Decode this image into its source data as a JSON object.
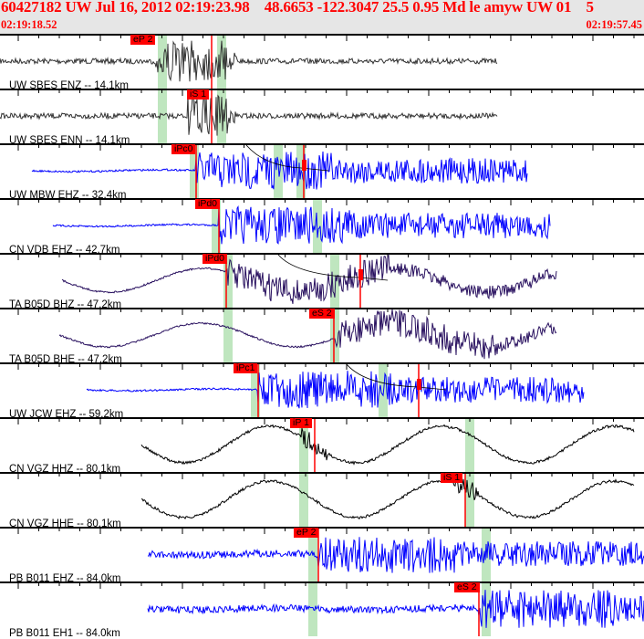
{
  "header": {
    "title": "60427182 UW Jul 16, 2012 02:19:23.98    48.6653 -122.3047 25.5 0.95 Md le amyw UW 01    5",
    "start_time": "02:19:18.52",
    "end_time": "02:19:57.45"
  },
  "colors": {
    "header_bg": "#e6e6e6",
    "title": "#ff0000",
    "pick": "#ff0000",
    "band": "#bfe6bf",
    "blue": "#0000ff",
    "purple": "#2a1260",
    "gray": "#333333",
    "black": "#000000"
  },
  "channels": [
    {
      "label": "UW SBES ENZ -- 14.1km",
      "color": "#333333",
      "picks": [
        "eP 2"
      ]
    },
    {
      "label": "UW SBES ENN -- 14.1km",
      "color": "#333333",
      "picks": [
        "iS 1"
      ]
    },
    {
      "label": "UW MBW EHZ -- 32.4km",
      "color": "#0000ff",
      "picks": [
        "iPc0"
      ]
    },
    {
      "label": "CN VDB EHZ -- 42.7km",
      "color": "#0000ff",
      "picks": [
        "iPd0"
      ]
    },
    {
      "label": "TA B05D BHZ -- 47.2km",
      "color": "#2a1260",
      "picks": [
        "iPd0"
      ]
    },
    {
      "label": "TA B05D BHE -- 47.2km",
      "color": "#2a1260",
      "picks": [
        "eS 2"
      ]
    },
    {
      "label": "UW JCW EHZ -- 59.2km",
      "color": "#0000ff",
      "picks": [
        "iPc1"
      ]
    },
    {
      "label": "CN VGZ HHZ -- 80.1km",
      "color": "#000000",
      "picks": [
        "iP 1"
      ]
    },
    {
      "label": "CN VGZ HHE -- 80.1km",
      "color": "#000000",
      "picks": [
        "iS 1"
      ]
    },
    {
      "label": "PB B011 EHZ -- 84.0km",
      "color": "#0000ff",
      "picks": [
        "eP 2"
      ]
    },
    {
      "label": "PB B011 EH1 -- 84.0km",
      "color": "#0000ff",
      "picks": [
        "eS 2"
      ]
    }
  ]
}
